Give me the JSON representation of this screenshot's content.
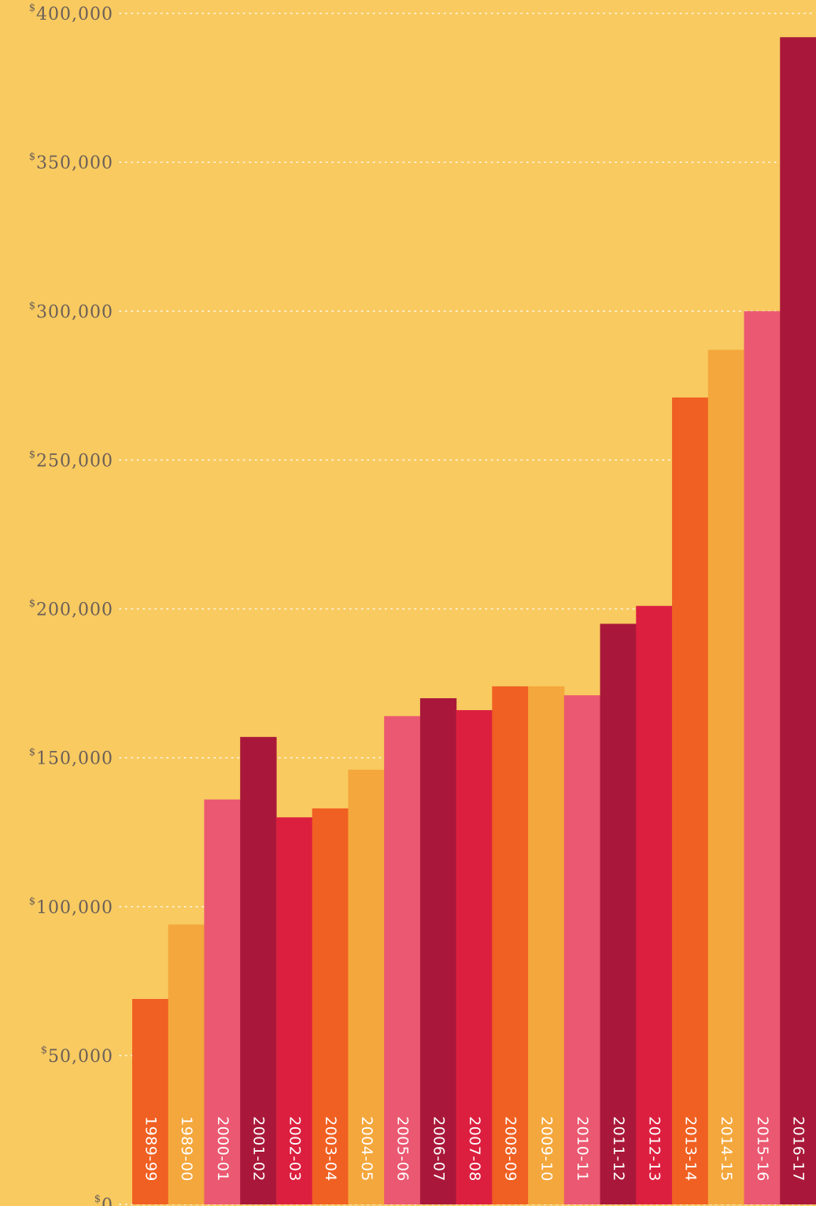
{
  "chart_data": {
    "type": "bar",
    "title": "",
    "xlabel": "",
    "ylabel": "",
    "ylim": [
      0,
      400000
    ],
    "y_ticks": [
      {
        "value": 0,
        "label": "0"
      },
      {
        "value": 50000,
        "label": "50,000"
      },
      {
        "value": 100000,
        "label": "100,000"
      },
      {
        "value": 150000,
        "label": "150,000"
      },
      {
        "value": 200000,
        "label": "200,000"
      },
      {
        "value": 250000,
        "label": "250,000"
      },
      {
        "value": 300000,
        "label": "300,000"
      },
      {
        "value": 350000,
        "label": "350,000"
      },
      {
        "value": 400000,
        "label": "400,000"
      }
    ],
    "currency_symbol": "$",
    "grid": true,
    "categories": [
      "1989-99",
      "1989-00",
      "2000-01",
      "2001-02",
      "2002-03",
      "2003-04",
      "2004-05",
      "2005-06",
      "2006-07",
      "2007-08",
      "2008-09",
      "2009-10",
      "2010-11",
      "2011-12",
      "2012-13",
      "2013-14",
      "2014-15",
      "2015-16",
      "2016-17"
    ],
    "values": [
      69000,
      94000,
      136000,
      157000,
      130000,
      133000,
      146000,
      164000,
      170000,
      166000,
      174000,
      174000,
      171000,
      195000,
      201000,
      271000,
      287000,
      300000,
      392000
    ],
    "colors": [
      "#f06022",
      "#f4a73c",
      "#eb5871",
      "#a9183a",
      "#dc1f3f",
      "#f06022",
      "#f4a73c",
      "#eb5871",
      "#a9183a",
      "#dc1f3f",
      "#f06022",
      "#f4a73c",
      "#eb5871",
      "#a9183a",
      "#dc1f3f",
      "#f06022",
      "#f4a73c",
      "#eb5871",
      "#a9183a"
    ]
  },
  "style": {
    "background": "#f8ca60",
    "gridline_color": "#ffffff",
    "tick_text_color": "#6b5f58",
    "category_text_color": "#ffffff"
  }
}
